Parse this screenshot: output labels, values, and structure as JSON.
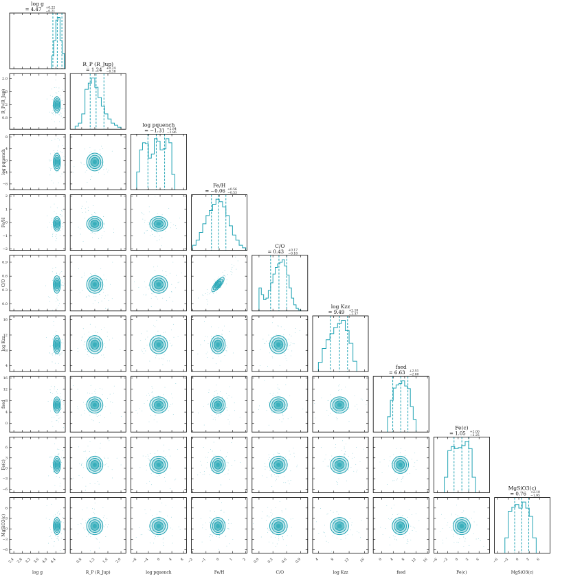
{
  "chart_data": {
    "type": "corner",
    "color": "#1ea2b3",
    "parameters": [
      {
        "key": "logg",
        "label": "log g",
        "ylabel": "",
        "range": [
          2.2,
          4.85
        ],
        "ticks": [
          2.4,
          2.8,
          3.2,
          3.6,
          4.0,
          4.4
        ],
        "tick_labels": [
          "2.4",
          "2.8",
          "3.2",
          "3.6",
          "4.0",
          "4.4"
        ],
        "title_main": "log g",
        "title_value": "= 4.47",
        "title_plus": "+0.22",
        "title_minus": "−0.21",
        "median": 4.47,
        "q_lo": 4.26,
        "q_hi": 4.69
      },
      {
        "key": "rp",
        "label": "R_P (R_Jup)",
        "ylabel": "R_P (R_Jup)",
        "range": [
          0.45,
          2.15
        ],
        "ticks": [
          0.8,
          1.2,
          1.6,
          2.0
        ],
        "tick_labels": [
          "0.8",
          "1.2",
          "1.6",
          "2.0"
        ],
        "title_main": "R_P (R_Jup)",
        "title_value": "= 1.24",
        "title_plus": "+0.24",
        "title_minus": "−0.18",
        "median": 1.24,
        "q_lo": 1.06,
        "q_hi": 1.48
      },
      {
        "key": "pq",
        "label": "log pquench",
        "ylabel": "log pquench",
        "range": [
          -10,
          9
        ],
        "ticks": [
          -8,
          -4,
          0,
          4,
          8
        ],
        "tick_labels": [
          "−8",
          "−4",
          "0",
          "4",
          "8"
        ],
        "title_main": "log pquench",
        "title_value": "= −1.31",
        "title_plus": "+2.84",
        "title_minus": "−2.86",
        "median": -1.31,
        "q_lo": -4.17,
        "q_hi": 1.53
      },
      {
        "key": "feh",
        "label": "Fe/H",
        "ylabel": "Fe/H",
        "range": [
          -2.1,
          2.1
        ],
        "ticks": [
          -2,
          -1,
          0,
          1,
          2
        ],
        "tick_labels": [
          "−2",
          "−1",
          "0",
          "1",
          "2"
        ],
        "title_main": "Fe/H",
        "title_value": "= −0.06",
        "title_plus": "+0.56",
        "title_minus": "−0.53",
        "median": -0.06,
        "q_lo": -0.59,
        "q_hi": 0.5
      },
      {
        "key": "co",
        "label": "C/O",
        "ylabel": "C/O",
        "range": [
          -0.15,
          1.05
        ],
        "ticks": [
          0.0,
          0.3,
          0.6,
          0.9
        ],
        "tick_labels": [
          "0.0",
          "0.3",
          "0.6",
          "0.9"
        ],
        "title_main": "C/O",
        "title_value": "= 0.43",
        "title_plus": "+0.17",
        "title_minus": "−0.18",
        "median": 0.43,
        "q_lo": 0.25,
        "q_hi": 0.6
      },
      {
        "key": "kzz",
        "label": "log Kzz",
        "ylabel": "log Kzz",
        "range": [
          2.5,
          17
        ],
        "ticks": [
          4,
          8,
          12,
          16
        ],
        "tick_labels": [
          "4",
          "8",
          "12",
          "16"
        ],
        "title_main": "log Kzz",
        "title_value": "= 9.49",
        "title_plus": "+2.10",
        "title_minus": "−2.37",
        "median": 9.49,
        "q_lo": 7.12,
        "q_hi": 11.59
      },
      {
        "key": "fsed",
        "label": "fsed",
        "ylabel": "fsed",
        "range": [
          -3,
          16.5
        ],
        "ticks": [
          0,
          4,
          8,
          12,
          16
        ],
        "tick_labels": [
          "0",
          "4",
          "8",
          "12",
          "16"
        ],
        "title_main": "fsed",
        "title_value": "= 6.63",
        "title_plus": "+2.51",
        "title_minus": "−2.80",
        "median": 6.63,
        "q_lo": 3.83,
        "q_hi": 9.14
      },
      {
        "key": "fec",
        "label": "Fe(c)",
        "ylabel": "Fe(c)",
        "range": [
          -7,
          9
        ],
        "ticks": [
          -6,
          -3,
          0,
          3,
          6
        ],
        "tick_labels": [
          "−6",
          "−3",
          "0",
          "3",
          "6"
        ],
        "title_main": "Fe(c)",
        "title_value": "= 1.05",
        "title_plus": "+2.00",
        "title_minus": "−2.25",
        "median": 1.05,
        "q_lo": -1.2,
        "q_hi": 3.05
      },
      {
        "key": "mgsio3",
        "label": "MgSiO3(c)",
        "ylabel": "MgSiO3(c)",
        "range": [
          -7,
          9
        ],
        "ticks": [
          -6,
          -3,
          0,
          3,
          6
        ],
        "tick_labels": [
          "−6",
          "−3",
          "0",
          "3",
          "6"
        ],
        "title_main": "MgSiO3(c)",
        "title_value": "= 0.76",
        "title_plus": "+2.10",
        "title_minus": "−1.95",
        "median": 0.76,
        "q_lo": -1.19,
        "q_hi": 2.86
      }
    ],
    "histograms": {
      "logg": {
        "edges": [
          4.2,
          4.3,
          4.4,
          4.5,
          4.6,
          4.7,
          4.8
        ],
        "counts": [
          0.25,
          0.55,
          0.95,
          1.0,
          0.55,
          0.3
        ]
      },
      "rp": {
        "edges": [
          0.6,
          0.7,
          0.8,
          0.9,
          1.0,
          1.1,
          1.2,
          1.3,
          1.4,
          1.5,
          1.6,
          1.7,
          1.8,
          1.9,
          2.0
        ],
        "counts": [
          0.06,
          0.12,
          0.3,
          0.78,
          0.9,
          1.0,
          0.82,
          0.62,
          0.45,
          0.3,
          0.2,
          0.12,
          0.08,
          0.04
        ]
      },
      "pq": {
        "edges": [
          -8,
          -7,
          -6,
          -5,
          -4,
          -3,
          -2,
          -1,
          0,
          1,
          2,
          3,
          4,
          5
        ],
        "counts": [
          0.35,
          0.78,
          0.92,
          0.9,
          0.62,
          0.7,
          1.0,
          0.95,
          0.78,
          0.8,
          1.0,
          0.92,
          0.3
        ]
      },
      "feh": {
        "edges": [
          -2,
          -1.75,
          -1.5,
          -1.25,
          -1,
          -0.75,
          -0.5,
          -0.25,
          0,
          0.25,
          0.5,
          0.75,
          1,
          1.25,
          1.5,
          1.75,
          2
        ],
        "counts": [
          0.1,
          0.2,
          0.35,
          0.52,
          0.68,
          0.78,
          0.9,
          1.0,
          0.95,
          0.85,
          0.68,
          0.48,
          0.3,
          0.2,
          0.1,
          0.05
        ]
      },
      "co": {
        "edges": [
          0,
          0.05,
          0.1,
          0.15,
          0.2,
          0.25,
          0.3,
          0.35,
          0.4,
          0.45,
          0.5,
          0.55,
          0.6,
          0.65,
          0.7,
          0.75,
          0.8,
          0.85,
          0.9
        ],
        "counts": [
          0.45,
          0.32,
          0.22,
          0.25,
          0.4,
          0.55,
          0.72,
          0.85,
          0.92,
          0.95,
          1.0,
          0.88,
          0.7,
          0.45,
          0.25,
          0.12,
          0.05,
          0.02
        ]
      },
      "kzz": {
        "edges": [
          4,
          5,
          6,
          7,
          8,
          9,
          10,
          11,
          12,
          13,
          14
        ],
        "counts": [
          0.18,
          0.45,
          0.62,
          0.74,
          0.86,
          0.94,
          1.0,
          0.8,
          0.55,
          0.2
        ]
      },
      "fsed": {
        "edges": [
          2,
          3,
          4,
          5,
          6,
          7,
          8,
          9,
          10,
          11,
          12
        ],
        "counts": [
          0.3,
          0.62,
          0.86,
          0.92,
          0.95,
          1.0,
          0.9,
          0.85,
          0.5,
          0.25
        ]
      },
      "fec": {
        "edges": [
          -4,
          -3,
          -2,
          -1,
          0,
          1,
          2,
          3,
          4,
          5
        ],
        "counts": [
          0.3,
          0.82,
          0.9,
          0.86,
          0.88,
          0.92,
          1.0,
          0.86,
          0.3
        ]
      },
      "mgsio3": {
        "edges": [
          -4,
          -3,
          -2,
          -1,
          0,
          1,
          2,
          3,
          4,
          5
        ],
        "counts": [
          0.3,
          0.82,
          0.9,
          0.95,
          0.88,
          1.0,
          0.88,
          0.72,
          0.3
        ]
      }
    },
    "joint_correlations": {
      "feh|co": 0.92
    },
    "joint_extents": {
      "logg": 0.18,
      "rp": 0.26,
      "pq": 3.2,
      "feh": 0.58,
      "co": 0.2,
      "kzz": 2.5,
      "fsed": 3.0,
      "fec": 2.6,
      "mgsio3": 2.6
    },
    "joint_centers": {
      "logg": 4.45,
      "rp": 1.2,
      "pq": -0.5,
      "feh": -0.1,
      "co": 0.42,
      "kzz": 9.5,
      "fsed": 6.5,
      "fec": 1.0,
      "mgsio3": 0.8
    },
    "contour_levels_sigma": [
      0.5,
      1.0,
      1.5,
      2.0
    ],
    "grid": false,
    "legend": "none"
  }
}
